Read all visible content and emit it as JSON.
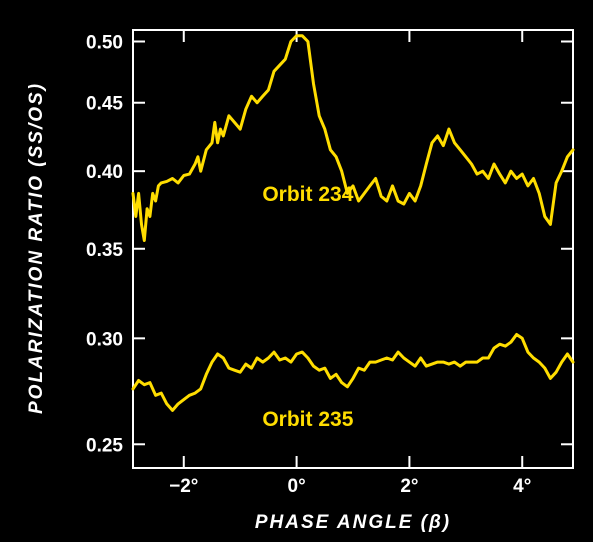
{
  "chart_data": {
    "type": "line",
    "title": "",
    "xlabel": "PHASE ANGLE (β)",
    "ylabel": "POLARIZATION RATIO (SS/OS)",
    "xlim": [
      -2.9,
      4.9
    ],
    "ylim": [
      0.24,
      0.51
    ],
    "yscale": "log",
    "x_ticks": [
      {
        "value": -2,
        "label": "−2°"
      },
      {
        "value": 0,
        "label": "0°"
      },
      {
        "value": 2,
        "label": "2°"
      },
      {
        "value": 4,
        "label": "4°"
      }
    ],
    "y_ticks": [
      {
        "value": 0.25,
        "label": "0.25"
      },
      {
        "value": 0.3,
        "label": "0.30"
      },
      {
        "value": 0.35,
        "label": "0.35"
      },
      {
        "value": 0.4,
        "label": "0.40"
      },
      {
        "value": 0.45,
        "label": "0.45"
      },
      {
        "value": 0.5,
        "label": "0.50"
      }
    ],
    "grid": false,
    "line_color": "#ffdd00",
    "axis_color": "#ffffff",
    "background": "#000000",
    "series": [
      {
        "name": "Orbit 234",
        "x": [
          -2.9,
          -2.85,
          -2.8,
          -2.75,
          -2.7,
          -2.65,
          -2.6,
          -2.55,
          -2.5,
          -2.45,
          -2.4,
          -2.3,
          -2.2,
          -2.1,
          -2.0,
          -1.9,
          -1.8,
          -1.75,
          -1.7,
          -1.6,
          -1.5,
          -1.45,
          -1.4,
          -1.35,
          -1.3,
          -1.2,
          -1.1,
          -1.0,
          -0.9,
          -0.8,
          -0.7,
          -0.6,
          -0.5,
          -0.4,
          -0.3,
          -0.2,
          -0.1,
          0.0,
          0.1,
          0.2,
          0.3,
          0.4,
          0.5,
          0.6,
          0.7,
          0.8,
          0.9,
          1.0,
          1.1,
          1.2,
          1.3,
          1.4,
          1.5,
          1.6,
          1.7,
          1.8,
          1.9,
          2.0,
          2.1,
          2.2,
          2.3,
          2.4,
          2.5,
          2.6,
          2.7,
          2.8,
          2.9,
          3.0,
          3.1,
          3.2,
          3.3,
          3.4,
          3.5,
          3.6,
          3.7,
          3.8,
          3.9,
          4.0,
          4.1,
          4.2,
          4.3,
          4.4,
          4.5,
          4.6,
          4.7,
          4.8,
          4.9
        ],
        "y": [
          0.385,
          0.37,
          0.385,
          0.365,
          0.355,
          0.375,
          0.37,
          0.385,
          0.38,
          0.39,
          0.392,
          0.393,
          0.395,
          0.392,
          0.397,
          0.398,
          0.405,
          0.41,
          0.4,
          0.415,
          0.42,
          0.435,
          0.42,
          0.43,
          0.425,
          0.44,
          0.435,
          0.43,
          0.445,
          0.455,
          0.45,
          0.455,
          0.46,
          0.475,
          0.48,
          0.485,
          0.5,
          0.505,
          0.505,
          0.5,
          0.465,
          0.44,
          0.43,
          0.415,
          0.41,
          0.4,
          0.385,
          0.39,
          0.38,
          0.385,
          0.39,
          0.395,
          0.383,
          0.38,
          0.39,
          0.38,
          0.378,
          0.385,
          0.38,
          0.39,
          0.405,
          0.42,
          0.425,
          0.418,
          0.43,
          0.42,
          0.415,
          0.41,
          0.405,
          0.398,
          0.4,
          0.395,
          0.405,
          0.398,
          0.392,
          0.4,
          0.395,
          0.398,
          0.39,
          0.395,
          0.385,
          0.37,
          0.365,
          0.392,
          0.4,
          0.41,
          0.415
        ]
      },
      {
        "name": "Orbit 235",
        "x": [
          -2.9,
          -2.8,
          -2.7,
          -2.6,
          -2.5,
          -2.4,
          -2.3,
          -2.2,
          -2.1,
          -2.0,
          -1.9,
          -1.8,
          -1.7,
          -1.6,
          -1.5,
          -1.4,
          -1.3,
          -1.2,
          -1.1,
          -1.0,
          -0.9,
          -0.8,
          -0.7,
          -0.6,
          -0.5,
          -0.4,
          -0.3,
          -0.2,
          -0.1,
          0.0,
          0.1,
          0.2,
          0.3,
          0.4,
          0.5,
          0.6,
          0.7,
          0.8,
          0.9,
          1.0,
          1.1,
          1.2,
          1.3,
          1.4,
          1.5,
          1.6,
          1.7,
          1.8,
          1.9,
          2.0,
          2.1,
          2.2,
          2.3,
          2.4,
          2.5,
          2.6,
          2.7,
          2.8,
          2.9,
          3.0,
          3.1,
          3.2,
          3.3,
          3.4,
          3.5,
          3.6,
          3.7,
          3.8,
          3.9,
          4.0,
          4.1,
          4.2,
          4.3,
          4.4,
          4.5,
          4.6,
          4.7,
          4.8,
          4.9
        ],
        "y": [
          0.275,
          0.279,
          0.277,
          0.278,
          0.272,
          0.273,
          0.268,
          0.265,
          0.268,
          0.27,
          0.272,
          0.273,
          0.275,
          0.282,
          0.288,
          0.292,
          0.29,
          0.285,
          0.284,
          0.283,
          0.287,
          0.285,
          0.29,
          0.288,
          0.29,
          0.293,
          0.289,
          0.29,
          0.288,
          0.292,
          0.293,
          0.29,
          0.286,
          0.284,
          0.285,
          0.28,
          0.282,
          0.278,
          0.276,
          0.28,
          0.285,
          0.284,
          0.288,
          0.288,
          0.289,
          0.29,
          0.289,
          0.293,
          0.29,
          0.288,
          0.286,
          0.29,
          0.286,
          0.287,
          0.288,
          0.288,
          0.287,
          0.288,
          0.286,
          0.288,
          0.288,
          0.288,
          0.29,
          0.29,
          0.295,
          0.297,
          0.296,
          0.298,
          0.302,
          0.3,
          0.293,
          0.29,
          0.288,
          0.285,
          0.28,
          0.283,
          0.288,
          0.292,
          0.288
        ]
      }
    ],
    "annotations": [
      {
        "text": "Orbit 234",
        "x": 0.2,
        "y": 0.38
      },
      {
        "text": "Orbit 235",
        "x": 0.2,
        "y": 0.258
      }
    ]
  }
}
